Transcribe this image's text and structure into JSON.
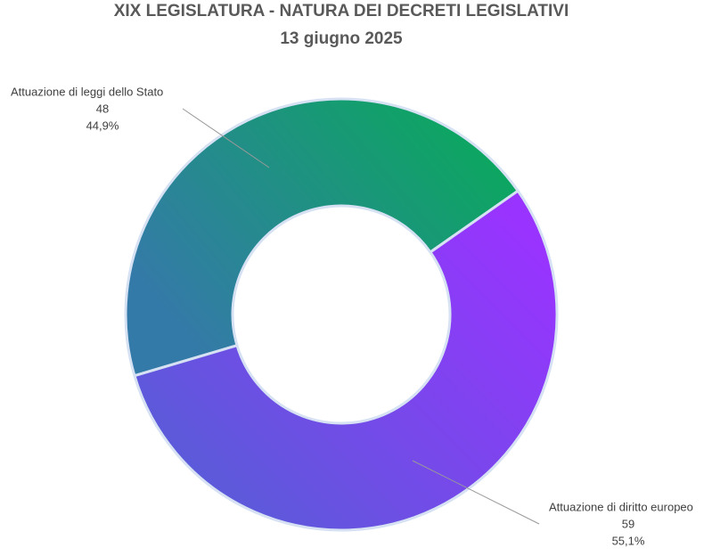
{
  "chart_data": {
    "type": "donut",
    "title": "XIX LEGISLATURA - NATURA DEI DECRETI LEGISLATIVI",
    "subtitle": "13 giugno 2025",
    "categories": [
      "Attuazione di leggi dello Stato",
      "Attuazione di diritto europeo"
    ],
    "values": [
      48,
      59
    ],
    "percentages": [
      44.9,
      55.1
    ],
    "percentage_labels": [
      "44,9%",
      "55,1%"
    ],
    "colors": [
      [
        "#347aa8",
        "#06ad55"
      ],
      [
        "#4f62d2",
        "#9933ff"
      ]
    ]
  }
}
